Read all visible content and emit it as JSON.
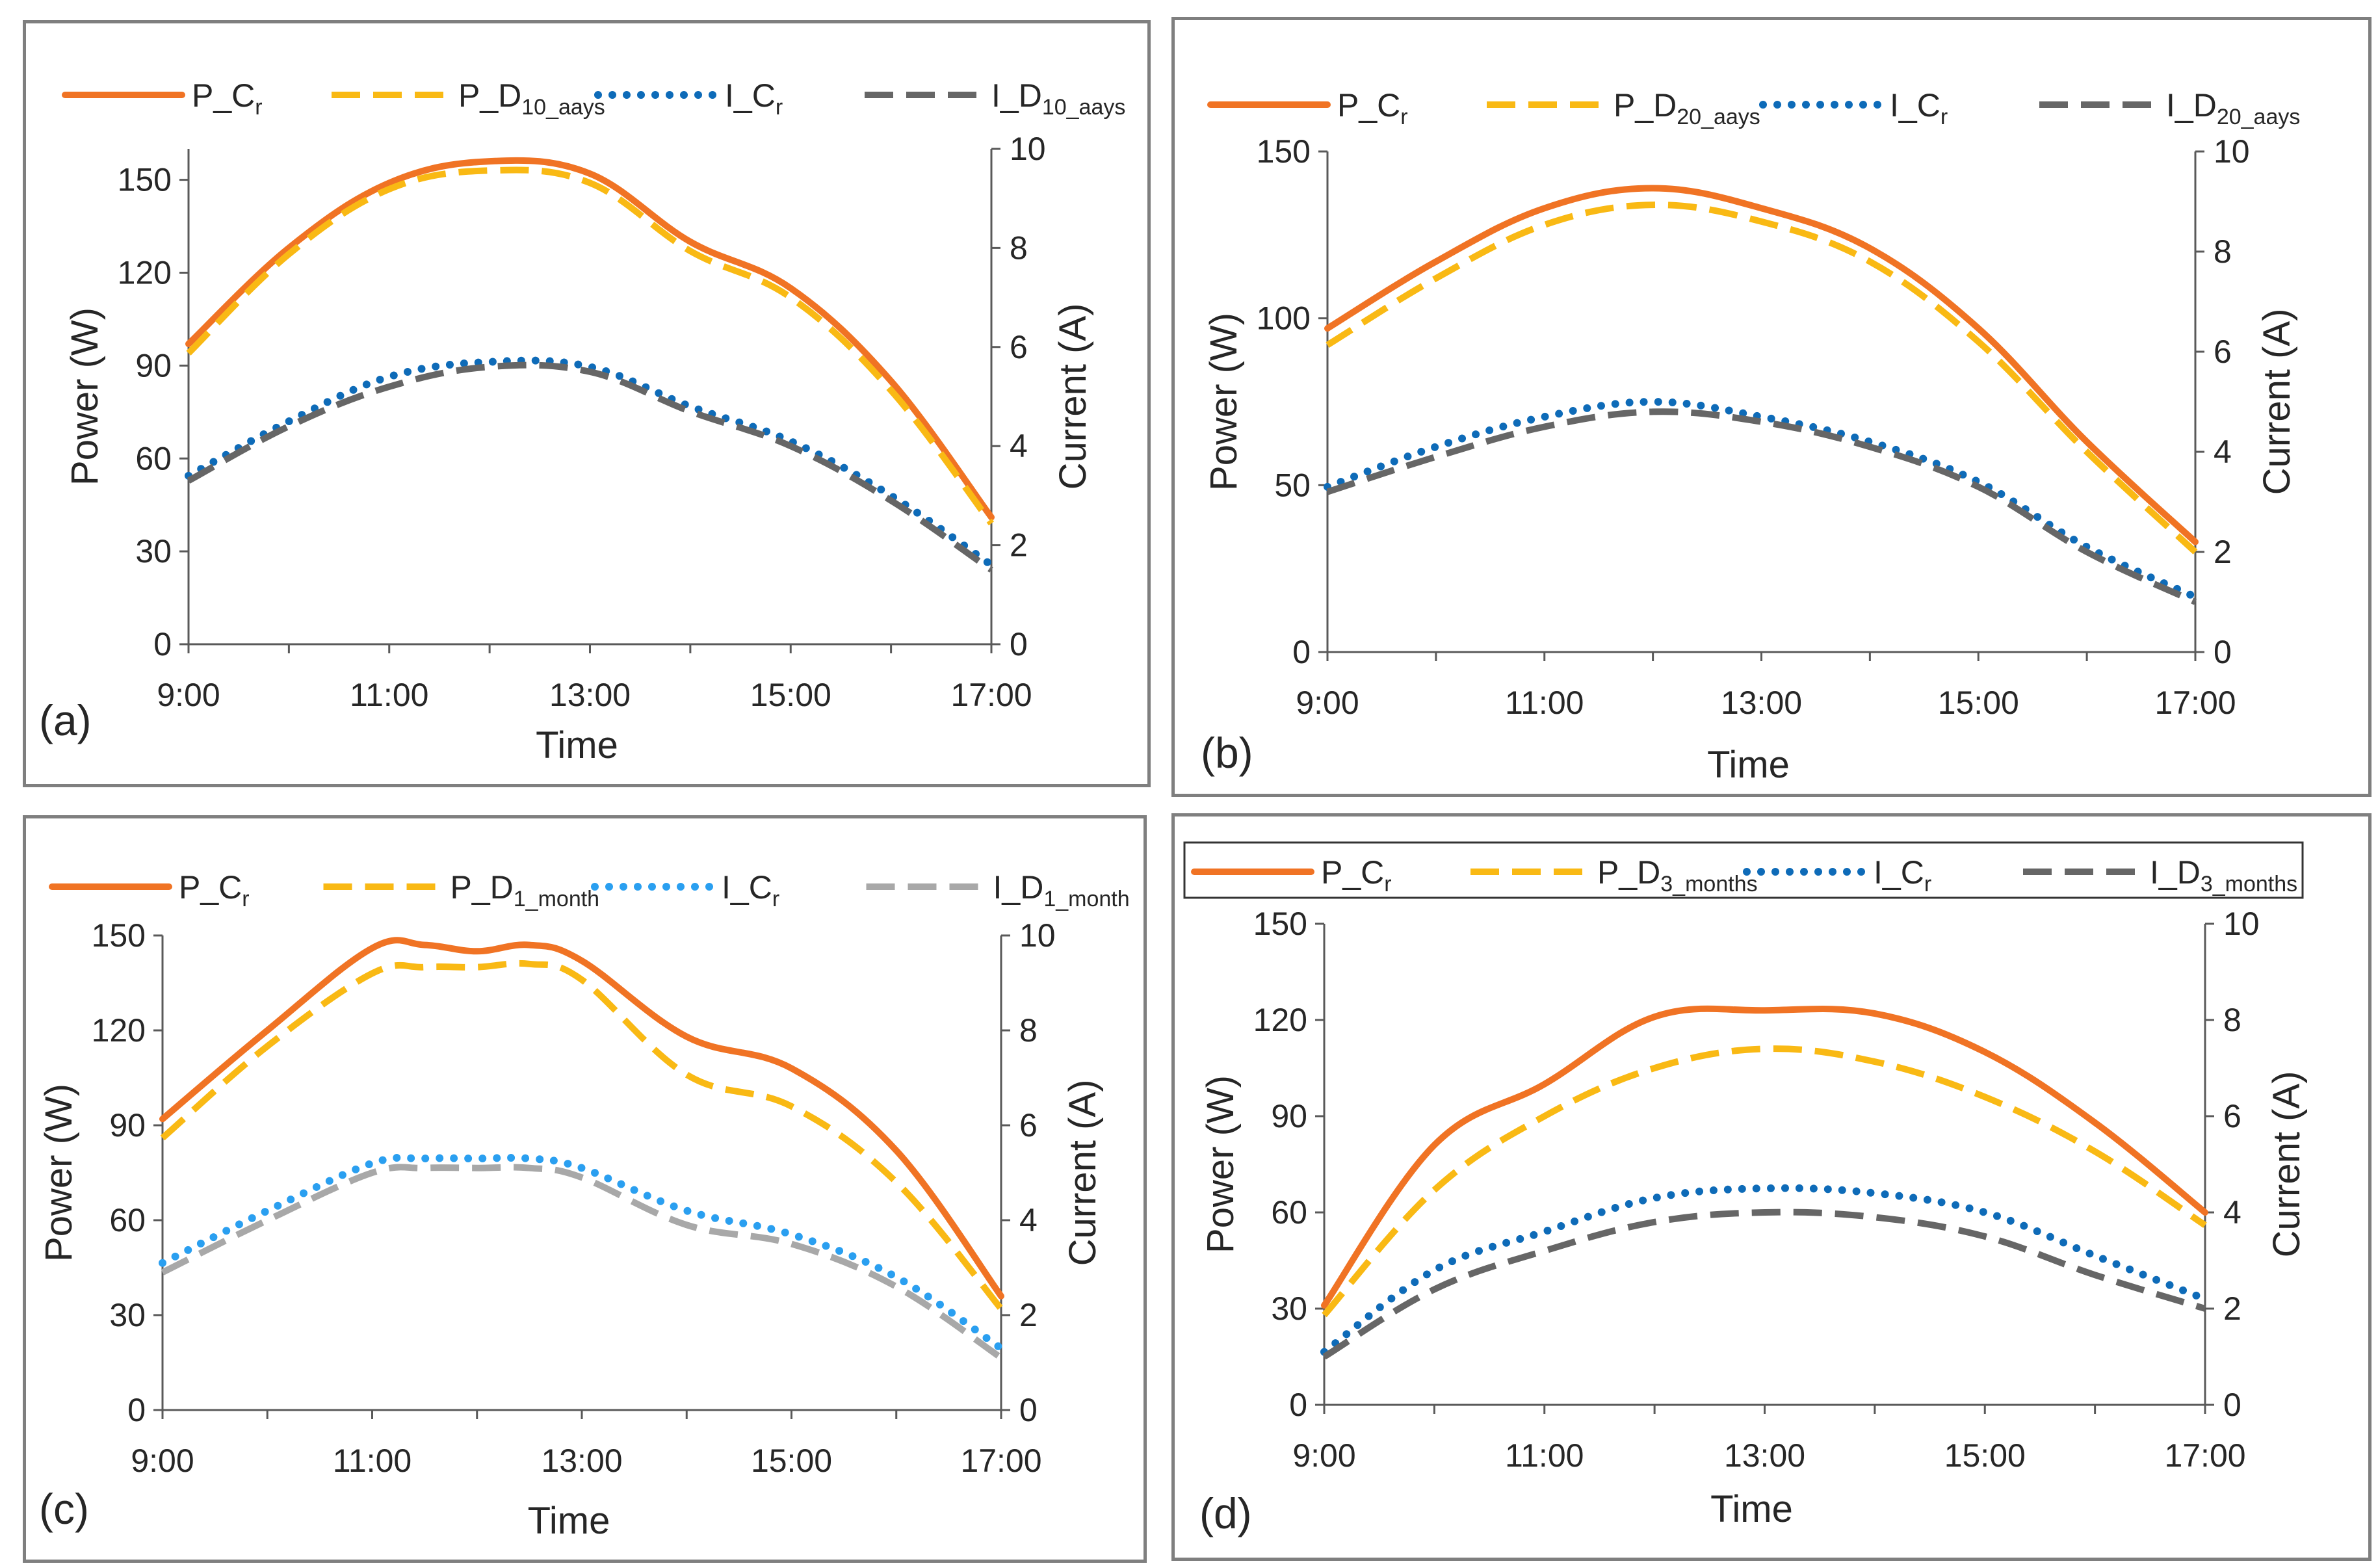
{
  "colors": {
    "power_cr": "#f07324",
    "power_degraded": "#f9b914",
    "current_cr": "#0e6bb8",
    "current_degraded": "#666666",
    "current_cr_light": "#2a9ff0",
    "current_degraded_light": "#a8a8a8",
    "axis": "#595959",
    "border": "#7f7f7f"
  },
  "chart_data": [
    {
      "panel_label": "(a)",
      "type": "line",
      "xlabel": "Time",
      "ylabel": "Power (W)",
      "y2label": "Current (A)",
      "x_ticks": [
        "9:00",
        "11:00",
        "13:00",
        "15:00",
        "17:00"
      ],
      "ylim": [
        0,
        160
      ],
      "y_ticks": [
        0,
        30,
        60,
        90,
        120,
        150
      ],
      "y2lim": [
        0,
        10
      ],
      "y2_ticks": [
        0,
        2,
        4,
        6,
        8,
        10
      ],
      "legend": {
        "placement": "top",
        "boxed": false
      },
      "series": [
        {
          "name": "P_C",
          "sub": "r",
          "axis": "left",
          "style": "solid",
          "color": "power_cr",
          "x": [
            9,
            10,
            11,
            12,
            13,
            14,
            15,
            16,
            17
          ],
          "values": [
            97,
            128,
            149,
            156,
            152,
            130,
            115,
            85,
            41
          ]
        },
        {
          "name": "P_D",
          "sub": "10_aays",
          "axis": "left",
          "style": "dash",
          "color": "power_degraded",
          "x": [
            9,
            10,
            11,
            12,
            13,
            14,
            15,
            16,
            17
          ],
          "values": [
            94,
            126,
            147,
            153,
            149,
            127,
            112,
            82,
            39
          ]
        },
        {
          "name": "I_C",
          "sub": "r",
          "axis": "right",
          "style": "dot",
          "color": "current_cr",
          "x": [
            9,
            10,
            11,
            12,
            13,
            14,
            15,
            16,
            17
          ],
          "values": [
            3.4,
            4.5,
            5.4,
            5.7,
            5.6,
            4.8,
            4.1,
            3.0,
            1.6
          ]
        },
        {
          "name": "I_D",
          "sub": "10_aays",
          "axis": "right",
          "style": "dash",
          "color": "current_degraded",
          "x": [
            9,
            10,
            11,
            12,
            13,
            14,
            15,
            16,
            17
          ],
          "values": [
            3.3,
            4.4,
            5.2,
            5.6,
            5.5,
            4.7,
            4.0,
            2.9,
            1.5
          ]
        }
      ]
    },
    {
      "panel_label": "(b)",
      "type": "line",
      "xlabel": "Time",
      "ylabel": "Power (W)",
      "y2label": "Current (A)",
      "x_ticks": [
        "9:00",
        "11:00",
        "13:00",
        "15:00",
        "17:00"
      ],
      "ylim": [
        0,
        150
      ],
      "y_ticks": [
        0,
        50,
        100,
        150
      ],
      "y2lim": [
        0,
        10
      ],
      "y2_ticks": [
        0,
        2,
        4,
        6,
        8,
        10
      ],
      "legend": {
        "placement": "top",
        "boxed": false
      },
      "series": [
        {
          "name": "P_C",
          "sub": "r",
          "axis": "left",
          "style": "solid",
          "color": "power_cr",
          "x": [
            9,
            10,
            11,
            12,
            13,
            14,
            15,
            16,
            17
          ],
          "values": [
            97,
            117,
            133,
            139,
            133,
            121,
            97,
            63,
            33
          ]
        },
        {
          "name": "P_D",
          "sub": "20_aays",
          "axis": "left",
          "style": "dash",
          "color": "power_degraded",
          "x": [
            9,
            10,
            11,
            12,
            13,
            14,
            15,
            16,
            17
          ],
          "values": [
            92,
            112,
            128,
            134,
            129,
            117,
            93,
            60,
            30
          ]
        },
        {
          "name": "I_C",
          "sub": "r",
          "axis": "right",
          "style": "dot",
          "color": "current_cr",
          "x": [
            9,
            10,
            11,
            12,
            13,
            14,
            15,
            16,
            17
          ],
          "values": [
            3.3,
            4.1,
            4.7,
            5.0,
            4.7,
            4.2,
            3.4,
            2.1,
            1.1
          ]
        },
        {
          "name": "I_D",
          "sub": "20_aays",
          "axis": "right",
          "style": "dash",
          "color": "current_degraded",
          "x": [
            9,
            10,
            11,
            12,
            13,
            14,
            15,
            16,
            17
          ],
          "values": [
            3.2,
            3.9,
            4.5,
            4.8,
            4.6,
            4.1,
            3.3,
            2.0,
            1.0
          ]
        }
      ]
    },
    {
      "panel_label": "(c)",
      "type": "line",
      "xlabel": "Time",
      "ylabel": "Power (W)",
      "y2label": "Current (A)",
      "x_ticks": [
        "9:00",
        "11:00",
        "13:00",
        "15:00",
        "17:00"
      ],
      "ylim": [
        0,
        150
      ],
      "y_ticks": [
        0,
        30,
        60,
        90,
        120,
        150
      ],
      "y2lim": [
        0,
        10
      ],
      "y2_ticks": [
        0,
        2,
        4,
        6,
        8,
        10
      ],
      "legend": {
        "placement": "top",
        "boxed": false
      },
      "series": [
        {
          "name": "P_C",
          "sub": "r",
          "axis": "left",
          "style": "solid",
          "color": "power_cr",
          "x": [
            9,
            10,
            11,
            11.5,
            12,
            12.5,
            13,
            14,
            15,
            16,
            17
          ],
          "values": [
            92,
            120,
            146,
            147,
            145,
            147,
            142,
            118,
            108,
            82,
            36
          ]
        },
        {
          "name": "P_D",
          "sub": "1_month",
          "axis": "left",
          "style": "dash",
          "color": "power_degraded",
          "x": [
            9,
            10,
            11,
            11.5,
            12,
            12.5,
            13,
            14,
            15,
            16,
            17
          ],
          "values": [
            86,
            115,
            138,
            140,
            140,
            141,
            136,
            106,
            96,
            72,
            32
          ]
        },
        {
          "name": "I_C",
          "sub": "r",
          "axis": "right",
          "style": "dot",
          "color": "current_cr_light",
          "x": [
            9,
            10,
            11,
            11.5,
            12,
            12.5,
            13,
            14,
            15,
            16,
            17
          ],
          "values": [
            3.1,
            4.2,
            5.2,
            5.3,
            5.3,
            5.3,
            5.1,
            4.2,
            3.7,
            2.8,
            1.3
          ]
        },
        {
          "name": "I_D",
          "sub": "1_month",
          "axis": "right",
          "style": "dash",
          "color": "current_degraded_light",
          "x": [
            9,
            10,
            11,
            11.5,
            12,
            12.5,
            13,
            14,
            15,
            16,
            17
          ],
          "values": [
            2.9,
            4.0,
            5.0,
            5.1,
            5.1,
            5.1,
            4.9,
            3.9,
            3.5,
            2.6,
            1.1
          ]
        }
      ]
    },
    {
      "panel_label": "(d)",
      "type": "line",
      "xlabel": "Time",
      "ylabel": "Power (W)",
      "y2label": "Current (A)",
      "x_ticks": [
        "9:00",
        "11:00",
        "13:00",
        "15:00",
        "17:00"
      ],
      "ylim": [
        0,
        150
      ],
      "y_ticks": [
        0,
        30,
        60,
        90,
        120,
        150
      ],
      "y2lim": [
        0,
        10
      ],
      "y2_ticks": [
        0,
        2,
        4,
        6,
        8,
        10
      ],
      "legend": {
        "placement": "top",
        "boxed": true
      },
      "series": [
        {
          "name": "P_C",
          "sub": "r",
          "axis": "left",
          "style": "solid",
          "color": "power_cr",
          "x": [
            9,
            10,
            11,
            12,
            13,
            14,
            15,
            16,
            17
          ],
          "values": [
            31,
            81,
            100,
            121,
            123,
            122,
            110,
            88,
            60
          ]
        },
        {
          "name": "P_D",
          "sub": "3_months",
          "axis": "left",
          "style": "dash",
          "color": "power_degraded",
          "x": [
            9,
            10,
            11,
            12,
            13,
            14,
            15,
            16,
            17
          ],
          "values": [
            28,
            67,
            90,
            105,
            111,
            107,
            96,
            79,
            56
          ]
        },
        {
          "name": "I_C",
          "sub": "r",
          "axis": "right",
          "style": "dot",
          "color": "current_cr",
          "x": [
            9,
            10,
            11,
            12,
            13,
            14,
            15,
            16,
            17
          ],
          "values": [
            1.1,
            2.8,
            3.6,
            4.3,
            4.5,
            4.4,
            4.0,
            3.1,
            2.2
          ]
        },
        {
          "name": "I_D",
          "sub": "3_months",
          "axis": "right",
          "style": "dash",
          "color": "current_degraded",
          "x": [
            9,
            10,
            11,
            12,
            13,
            14,
            15,
            16,
            17
          ],
          "values": [
            1.0,
            2.4,
            3.2,
            3.8,
            4.0,
            3.9,
            3.5,
            2.7,
            2.0
          ]
        }
      ]
    }
  ]
}
